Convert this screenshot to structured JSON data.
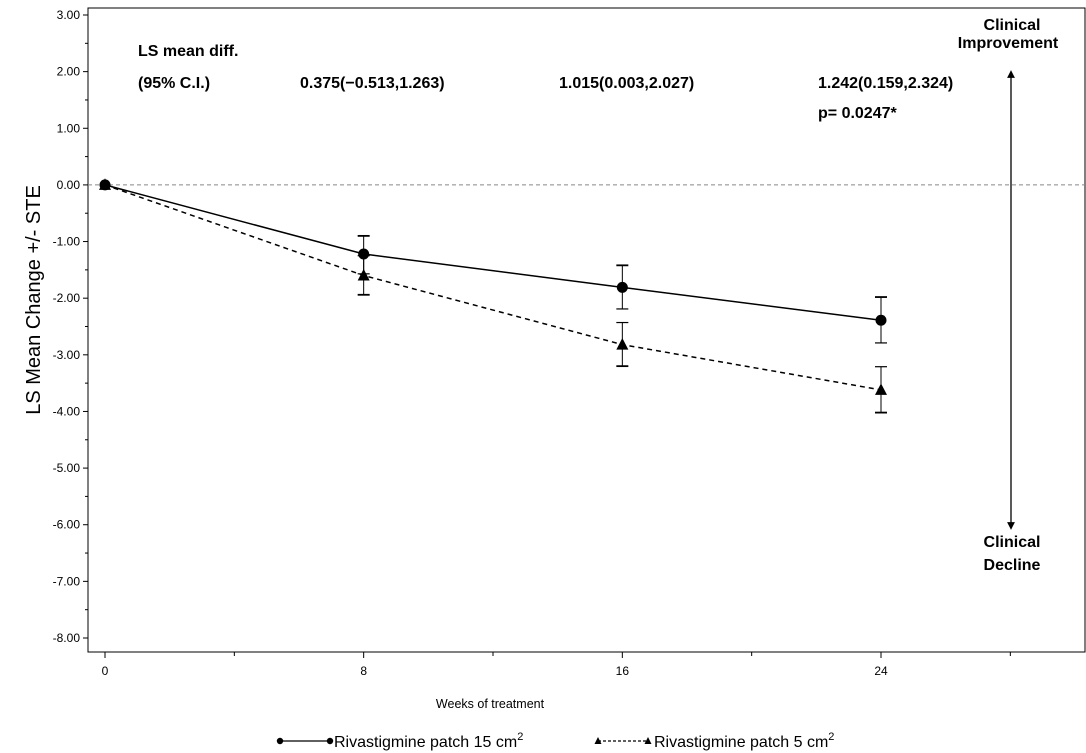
{
  "chart_data": {
    "type": "line",
    "ylabel": "LS Mean Change +/- STE",
    "xlabel": "Weeks of treatment",
    "ylim": [
      -8,
      3
    ],
    "y_ticks": [
      "3.00",
      "2.00",
      "1.00",
      "0.00",
      "-1.00",
      "-2.00",
      "-3.00",
      "-4.00",
      "-5.00",
      "-6.00",
      "-7.00",
      "-8.00"
    ],
    "x_ticks": [
      "0",
      "8",
      "16",
      "24"
    ],
    "x": [
      0,
      8,
      16,
      24
    ],
    "reference_line": 0,
    "series": [
      {
        "name": "Rivastigmine patch 15 cm",
        "name_sup": "2",
        "values": [
          0.0,
          -1.22,
          -1.81,
          -2.39
        ],
        "err_upper": [
          0.0,
          -0.9,
          -1.42,
          -1.98
        ],
        "err_lower": [
          0.0,
          -1.57,
          -2.19,
          -2.79
        ],
        "marker": "circle",
        "line_style": "solid",
        "color": "#000000"
      },
      {
        "name": "Rivastigmine patch 5 cm",
        "name_sup": "2",
        "values": [
          0.0,
          -1.6,
          -2.82,
          -3.62
        ],
        "err_upper": [
          0.0,
          -1.25,
          -2.43,
          -3.21
        ],
        "err_lower": [
          0.0,
          -1.94,
          -3.2,
          -4.02
        ],
        "marker": "triangle",
        "line_style": "dashed",
        "color": "#000000"
      }
    ],
    "annotations": {
      "header_line1": "LS mean diff.",
      "header_line2": "(95% C.I.)",
      "diff_8": "0.375(−0.513,1.263)",
      "diff_16": "1.015(0.003,2.027)",
      "diff_24": "1.242(0.159,2.324)",
      "p_value": "p= 0.0247*",
      "improvement_line1": "Clinical",
      "improvement_line2": "Improvement",
      "decline_line1": "Clinical",
      "decline_line2": "Decline"
    },
    "grid": false,
    "legend_position": "bottom"
  }
}
